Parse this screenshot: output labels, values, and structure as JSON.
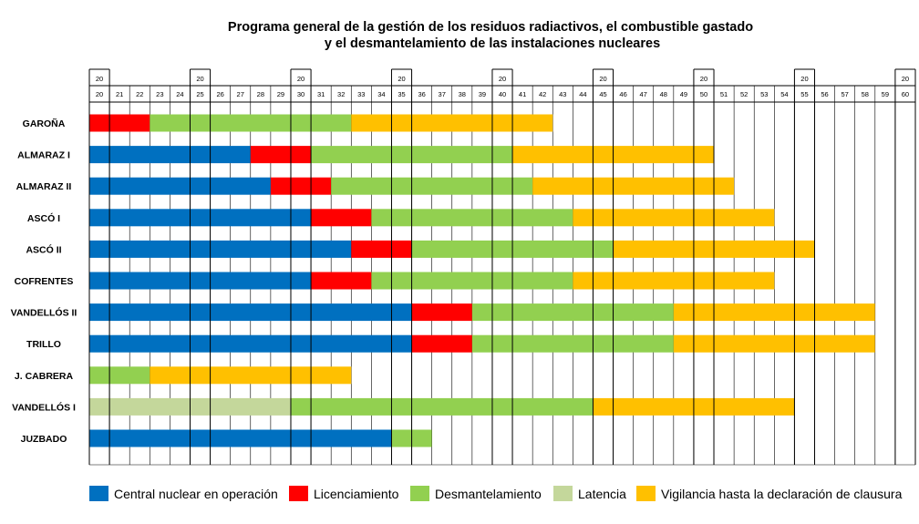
{
  "chart_data": {
    "type": "gantt",
    "title_line1": "Programa general de la gestión de los residuos radiactivos, el combustible gastado",
    "title_line2": "y el desmantelamiento de las instalaciones nucleares",
    "x_start": 20,
    "x_end": 60,
    "century_label": "20",
    "decade_marks": [
      20,
      25,
      30,
      35,
      40,
      45,
      50,
      55,
      60
    ],
    "year_labels": [
      "20",
      "21",
      "22",
      "23",
      "24",
      "25",
      "26",
      "27",
      "28",
      "29",
      "30",
      "31",
      "32",
      "33",
      "34",
      "35",
      "36",
      "37",
      "38",
      "39",
      "40",
      "41",
      "42",
      "43",
      "44",
      "45",
      "46",
      "47",
      "48",
      "49",
      "50",
      "51",
      "52",
      "53",
      "54",
      "55",
      "56",
      "57",
      "58",
      "59",
      "60"
    ],
    "phases": [
      {
        "key": "op",
        "label": "Central nuclear en operación",
        "color": "#0070C0"
      },
      {
        "key": "lic",
        "label": "Licenciamiento",
        "color": "#FF0000"
      },
      {
        "key": "des",
        "label": "Desmantelamiento",
        "color": "#92D050"
      },
      {
        "key": "lat",
        "label": "Latencia",
        "color": "#C4D79B"
      },
      {
        "key": "vig",
        "label": "Vigilancia hasta la declaración de clausura",
        "color": "#FFC000"
      }
    ],
    "rows": [
      {
        "name": "GAROÑA",
        "segments": [
          [
            "lic",
            20,
            23
          ],
          [
            "des",
            23,
            33
          ],
          [
            "vig",
            33,
            43
          ]
        ]
      },
      {
        "name": "ALMARAZ I",
        "segments": [
          [
            "op",
            20,
            28
          ],
          [
            "lic",
            28,
            31
          ],
          [
            "des",
            31,
            41
          ],
          [
            "vig",
            41,
            51
          ]
        ]
      },
      {
        "name": "ALMARAZ II",
        "segments": [
          [
            "op",
            20,
            29
          ],
          [
            "lic",
            29,
            32
          ],
          [
            "des",
            32,
            42
          ],
          [
            "vig",
            42,
            52
          ]
        ]
      },
      {
        "name": "ASCÓ I",
        "segments": [
          [
            "op",
            20,
            31
          ],
          [
            "lic",
            31,
            34
          ],
          [
            "des",
            34,
            44
          ],
          [
            "vig",
            44,
            54
          ]
        ]
      },
      {
        "name": "ASCÓ II",
        "segments": [
          [
            "op",
            20,
            33
          ],
          [
            "lic",
            33,
            36
          ],
          [
            "des",
            36,
            46
          ],
          [
            "vig",
            46,
            56
          ]
        ]
      },
      {
        "name": "COFRENTES",
        "segments": [
          [
            "op",
            20,
            31
          ],
          [
            "lic",
            31,
            34
          ],
          [
            "des",
            34,
            44
          ],
          [
            "vig",
            44,
            54
          ]
        ]
      },
      {
        "name": "VANDELLÓS II",
        "segments": [
          [
            "op",
            20,
            36
          ],
          [
            "lic",
            36,
            39
          ],
          [
            "des",
            39,
            49
          ],
          [
            "vig",
            49,
            59
          ]
        ]
      },
      {
        "name": "TRILLO",
        "segments": [
          [
            "op",
            20,
            36
          ],
          [
            "lic",
            36,
            39
          ],
          [
            "des",
            39,
            49
          ],
          [
            "vig",
            49,
            59
          ]
        ]
      },
      {
        "name": "J. CABRERA",
        "segments": [
          [
            "des",
            20,
            23
          ],
          [
            "vig",
            23,
            33
          ]
        ]
      },
      {
        "name": "VANDELLÓS I",
        "segments": [
          [
            "lat",
            20,
            30
          ],
          [
            "des",
            30,
            45
          ],
          [
            "vig",
            45,
            55
          ]
        ]
      },
      {
        "name": "JUZBADO",
        "segments": [
          [
            "op",
            20,
            35
          ],
          [
            "des",
            35,
            37
          ]
        ]
      }
    ]
  }
}
